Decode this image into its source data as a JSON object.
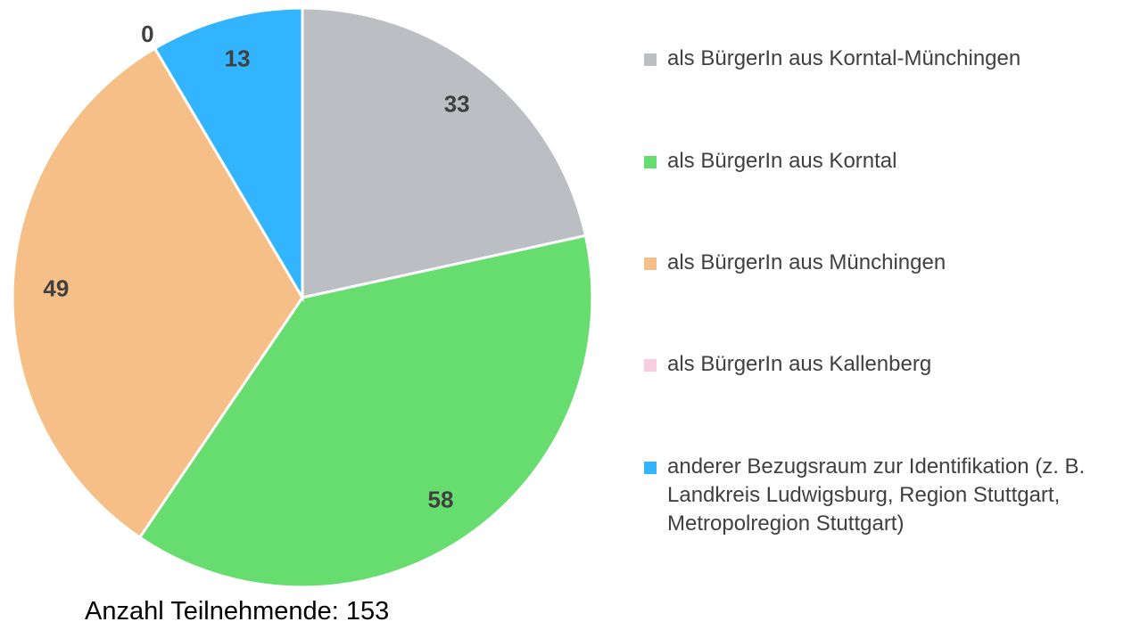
{
  "chart_data": {
    "type": "pie",
    "categories": [
      "als BürgerIn aus Korntal-Münchingen",
      "als BürgerIn aus Korntal",
      "als BürgerIn aus Münchingen",
      "als BürgerIn aus Kallenberg",
      "anderer Bezugsraum zur Identifikation (z. B. Landkreis Ludwigsburg, Region Stuttgart, Metropolregion Stuttgart)"
    ],
    "values": [
      33,
      58,
      49,
      0,
      13
    ],
    "colors": [
      "#bbbec3",
      "#66dd6e",
      "#f5bf87",
      "#f9cce0",
      "#33b4ff"
    ],
    "note": "Anzahl Teilnehmende: 153",
    "legend": "right"
  }
}
